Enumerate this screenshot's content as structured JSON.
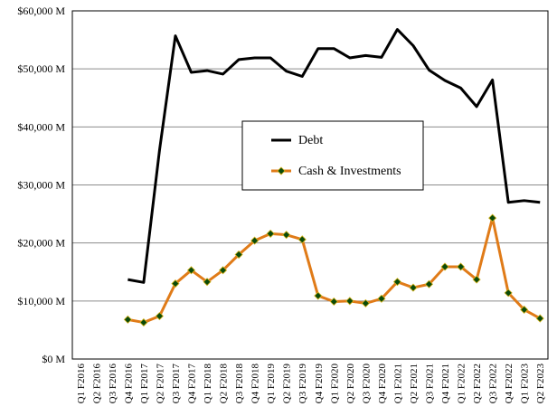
{
  "chart_data": {
    "type": "line",
    "title": "",
    "xlabel": "",
    "ylabel": "",
    "ylim": [
      0,
      60000
    ],
    "y_ticks": [
      0,
      10000,
      20000,
      30000,
      40000,
      50000,
      60000
    ],
    "y_tick_labels": [
      "$0 M",
      "$10,000 M",
      "$20,000 M",
      "$30,000 M",
      "$40,000 M",
      "$50,000 M",
      "$60,000 M"
    ],
    "grid": "horizontal",
    "legend_position": "center-right",
    "categories": [
      "Q1 F2016",
      "Q2 F2016",
      "Q3 F2016",
      "Q4 F2016",
      "Q1 F2017",
      "Q2 F2017",
      "Q3 F2017",
      "Q4 F2017",
      "Q1 F2018",
      "Q2 F2018",
      "Q3 F2018",
      "Q4 F2018",
      "Q1 F2019",
      "Q2 F2019",
      "Q3 F2019",
      "Q4 F2019",
      "Q1 F2020",
      "Q2 F2020",
      "Q3 F2020",
      "Q4 F2020",
      "Q1 F2021",
      "Q2 F2021",
      "Q3 F2021",
      "Q4 F2021",
      "Q1 F2022",
      "Q2 F2022",
      "Q3 F2022",
      "Q4 F2022",
      "Q1 F2023",
      "Q2 F2023"
    ],
    "series": [
      {
        "name": "Debt",
        "color": "#000000",
        "marker": "none",
        "values": [
          null,
          null,
          null,
          13700,
          13200,
          36000,
          55700,
          49400,
          49700,
          49100,
          51600,
          51900,
          51900,
          49600,
          48700,
          53500,
          53500,
          51900,
          52300,
          52000,
          56800,
          54000,
          49800,
          48000,
          46700,
          43500,
          48100,
          27000,
          27300,
          27000
        ]
      },
      {
        "name": "Cash & Investments",
        "color": "#e07b18",
        "marker": "diamond",
        "marker_color": "#0a4a0a",
        "values": [
          null,
          null,
          null,
          6800,
          6300,
          7400,
          13000,
          15300,
          13300,
          15300,
          18000,
          20400,
          21600,
          21400,
          20600,
          10900,
          9900,
          10000,
          9600,
          10400,
          13300,
          12300,
          12900,
          15900,
          15900,
          13700,
          24300,
          11400,
          8500,
          7000
        ]
      }
    ]
  }
}
